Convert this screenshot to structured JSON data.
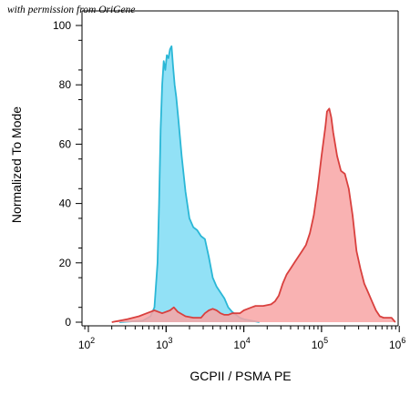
{
  "watermark": "with permission from OriGene",
  "chart_data": {
    "type": "area",
    "title": "",
    "xlabel": "GCPII / PSMA PE",
    "ylabel": "Normalized To Mode",
    "x_scale": "log10",
    "xlim": [
      10,
      1000000
    ],
    "ylim": [
      0,
      100
    ],
    "x_tick_labels": [
      {
        "base": "10",
        "exp": "2",
        "value": 100
      },
      {
        "base": "10",
        "exp": "3",
        "value": 1000
      },
      {
        "base": "10",
        "exp": "4",
        "value": 10000
      },
      {
        "base": "10",
        "exp": "5",
        "value": 100000
      },
      {
        "base": "10",
        "exp": "6",
        "value": 1000000
      }
    ],
    "y_ticks": [
      0,
      20,
      40,
      60,
      80,
      100
    ],
    "grid": false,
    "legend": "none",
    "series": [
      {
        "stroke": "#2ab7d6",
        "fill": "#8cdff5",
        "points": [
          [
            251,
            0
          ],
          [
            501,
            0.5
          ],
          [
            631,
            2
          ],
          [
            708,
            5
          ],
          [
            776,
            20
          ],
          [
            813,
            40
          ],
          [
            851,
            65
          ],
          [
            891,
            80
          ],
          [
            933,
            88
          ],
          [
            977,
            85
          ],
          [
            1023,
            90
          ],
          [
            1072,
            89
          ],
          [
            1122,
            92
          ],
          [
            1175,
            93
          ],
          [
            1230,
            86
          ],
          [
            1288,
            80
          ],
          [
            1349,
            76
          ],
          [
            1445,
            68
          ],
          [
            1585,
            56
          ],
          [
            1778,
            44
          ],
          [
            1995,
            35
          ],
          [
            2239,
            32
          ],
          [
            2512,
            31
          ],
          [
            2818,
            29
          ],
          [
            3162,
            28
          ],
          [
            3548,
            22
          ],
          [
            3981,
            15
          ],
          [
            4467,
            12
          ],
          [
            5012,
            10
          ],
          [
            5623,
            8
          ],
          [
            6310,
            5
          ],
          [
            7079,
            3.5
          ],
          [
            7943,
            2.5
          ],
          [
            8913,
            1.5
          ],
          [
            10000,
            1
          ],
          [
            12589,
            0.5
          ],
          [
            15849,
            0
          ]
        ]
      },
      {
        "stroke": "#d9403e",
        "fill": "#f8a5a5",
        "points": [
          [
            200,
            0
          ],
          [
            316,
            1
          ],
          [
            447,
            2
          ],
          [
            562,
            3
          ],
          [
            708,
            4
          ],
          [
            891,
            3
          ],
          [
            1122,
            4
          ],
          [
            1259,
            5
          ],
          [
            1413,
            3.5
          ],
          [
            1778,
            2
          ],
          [
            2239,
            1.5
          ],
          [
            2818,
            1.5
          ],
          [
            3162,
            3
          ],
          [
            3548,
            4
          ],
          [
            3981,
            4.5
          ],
          [
            4467,
            4
          ],
          [
            5012,
            3
          ],
          [
            5623,
            2.5
          ],
          [
            6310,
            2.5
          ],
          [
            7079,
            3
          ],
          [
            8913,
            3
          ],
          [
            10000,
            4
          ],
          [
            11220,
            4.5
          ],
          [
            12589,
            5
          ],
          [
            14125,
            5.5
          ],
          [
            17783,
            5.5
          ],
          [
            22387,
            6
          ],
          [
            25119,
            7
          ],
          [
            28184,
            9
          ],
          [
            31623,
            13
          ],
          [
            35481,
            16
          ],
          [
            39811,
            18
          ],
          [
            44668,
            20
          ],
          [
            50119,
            22
          ],
          [
            56234,
            24
          ],
          [
            63096,
            26
          ],
          [
            70795,
            30
          ],
          [
            79433,
            36
          ],
          [
            89125,
            45
          ],
          [
            100000,
            56
          ],
          [
            112202,
            66
          ],
          [
            117490,
            71
          ],
          [
            125893,
            72
          ],
          [
            133352,
            69
          ],
          [
            141254,
            64
          ],
          [
            158489,
            56
          ],
          [
            177828,
            51
          ],
          [
            199526,
            50
          ],
          [
            223872,
            45
          ],
          [
            251189,
            36
          ],
          [
            281838,
            24
          ],
          [
            316228,
            18
          ],
          [
            354813,
            13
          ],
          [
            398107,
            10
          ],
          [
            446684,
            7
          ],
          [
            501187,
            4
          ],
          [
            562341,
            2
          ],
          [
            630957,
            1.5
          ],
          [
            707946,
            1.5
          ],
          [
            794328,
            1.5
          ],
          [
            891251,
            0
          ]
        ]
      }
    ]
  }
}
